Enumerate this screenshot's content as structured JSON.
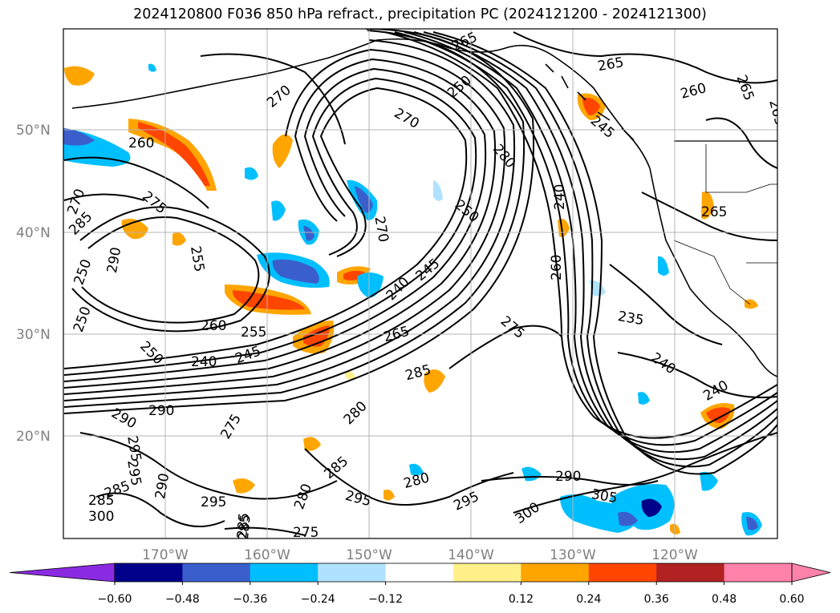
{
  "title": "2024120800 F036 850 hPa refract., precipitation PC (2024121200 - 2024121300)",
  "latitude_labels": [
    "50°N",
    "40°N",
    "30°N",
    "20°N"
  ],
  "longitude_labels": [
    "170°W",
    "160°W",
    "150°W",
    "140°W",
    "130°W",
    "120°W"
  ],
  "colorbar": {
    "ticks": [
      "−0.60",
      "−0.48",
      "−0.36",
      "−0.24",
      "−0.12",
      "0.12",
      "0.24",
      "0.36",
      "0.48",
      "0.60"
    ],
    "colors": [
      "#8a2be2",
      "#9a32cd",
      "#00008b",
      "#3a5fcd",
      "#00bfff",
      "#b0e2ff",
      "#ffffff",
      "#fff08a",
      "#ffa500",
      "#ff4500",
      "#b22222",
      "#ff82ab"
    ]
  },
  "contour_labels": [
    "265",
    "265",
    "265",
    "270",
    "260",
    "265",
    "250",
    "270",
    "260",
    "245",
    "280",
    "285",
    "275",
    "250",
    "240",
    "265",
    "270",
    "250",
    "245",
    "240",
    "260",
    "235",
    "290",
    "250",
    "255",
    "260",
    "255",
    "240",
    "245",
    "265",
    "275",
    "285",
    "240",
    "250",
    "240",
    "290",
    "290",
    "280",
    "275",
    "295",
    "295",
    "285",
    "280",
    "295",
    "280",
    "290",
    "300",
    "305",
    "285",
    "295",
    "275",
    "285",
    "285",
    "300",
    "290",
    "285",
    "295",
    "270"
  ]
}
